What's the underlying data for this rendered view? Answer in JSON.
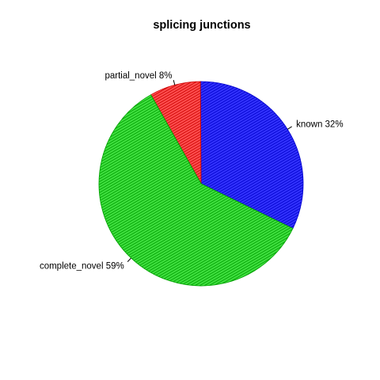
{
  "chart_data": {
    "type": "pie",
    "title": "splicing junctions",
    "slices": [
      {
        "label": "known 32%",
        "category": "known",
        "value": 32,
        "color": "#3333ff",
        "hatch": "#0000cc"
      },
      {
        "label": "partial_novel 8%",
        "category": "partial_novel",
        "value": 8,
        "color": "#ff5050",
        "hatch": "#cc0000"
      },
      {
        "label": "complete_novel 59%",
        "category": "complete_novel",
        "value": 59,
        "color": "#40e040",
        "hatch": "#00a000"
      }
    ],
    "start_angle_deg": -26,
    "direction": "counterclockwise",
    "fill_style": "hatched"
  }
}
